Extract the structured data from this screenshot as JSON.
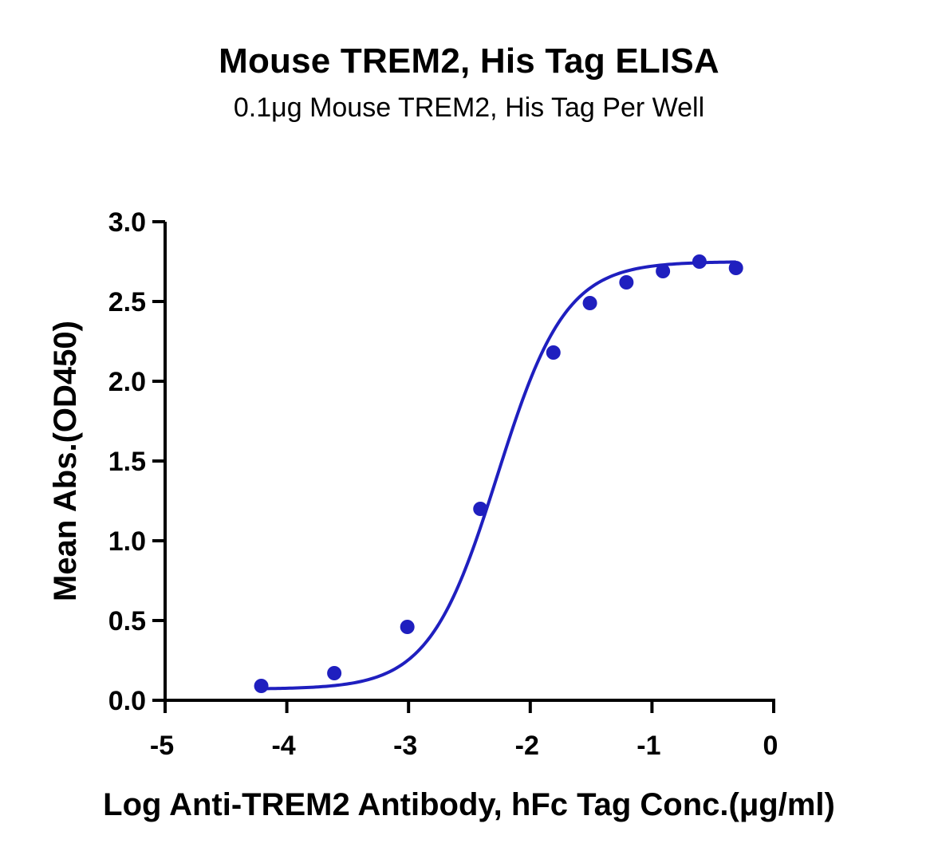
{
  "chart_data": {
    "type": "scatter",
    "title": "Mouse TREM2, His Tag ELISA",
    "subtitle": "0.1μg Mouse TREM2, His Tag Per Well",
    "xlabel": "Log Anti-TREM2 Antibody, hFc Tag Conc.(μg/ml)",
    "ylabel": "Mean Abs.(OD450)",
    "xlim": [
      -5,
      0
    ],
    "ylim": [
      0,
      3
    ],
    "x_ticks": [
      "-5",
      "-4",
      "-3",
      "-2",
      "-1",
      "0"
    ],
    "y_ticks": [
      "0.0",
      "0.5",
      "1.0",
      "1.5",
      "2.0",
      "2.5",
      "3.0"
    ],
    "series": [
      {
        "x": [
          -4.21,
          -3.61,
          -3.01,
          -2.41,
          -1.81,
          -1.51,
          -1.21,
          -0.91,
          -0.61,
          -0.31
        ],
        "y": [
          0.09,
          0.17,
          0.46,
          1.2,
          2.18,
          2.49,
          2.62,
          2.69,
          2.75,
          2.71
        ]
      }
    ],
    "fit_curve": true,
    "color": "#1f1fbf",
    "grid": false
  }
}
